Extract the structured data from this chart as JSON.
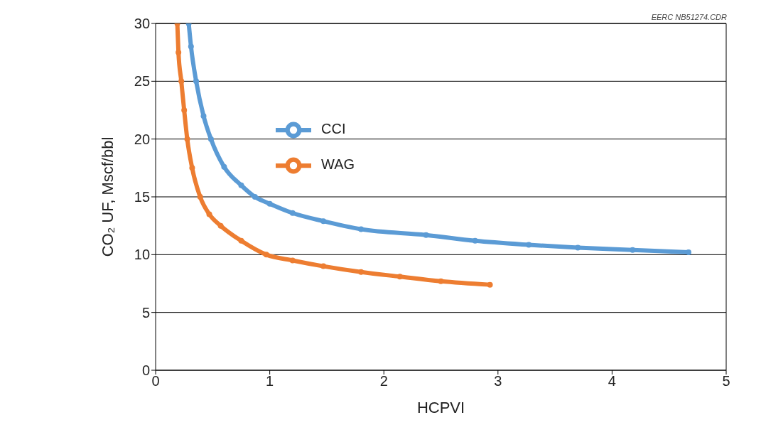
{
  "chart_data": {
    "type": "line",
    "xlabel": "HCPVI",
    "ylabel": "CO₂ UF, Mscf/bbl",
    "annotations": [
      "EERC NB51274.CDR"
    ],
    "series": [
      {
        "name": "CCI",
        "color": "#5b9bd5",
        "x": [
          0.29,
          0.31,
          0.355,
          0.42,
          0.485,
          0.6,
          0.75,
          0.87,
          1,
          1.2,
          1.47,
          1.8,
          2.37,
          2.8,
          3.27,
          3.7,
          4.18,
          4.67
        ],
        "values": [
          30,
          28,
          25,
          22,
          20,
          17.6,
          16,
          15,
          14.4,
          13.6,
          12.9,
          12.2,
          11.7,
          11.2,
          10.85,
          10.6,
          10.4,
          10.2
        ]
      },
      {
        "name": "WAG",
        "color": "#ed7d31",
        "x": [
          0.19,
          0.2,
          0.225,
          0.25,
          0.277,
          0.32,
          0.39,
          0.47,
          0.57,
          0.75,
          0.97,
          1.2,
          1.47,
          1.8,
          2.14,
          2.5,
          2.93
        ],
        "values": [
          30,
          27.5,
          25,
          22.5,
          20,
          17.5,
          15,
          13.5,
          12.5,
          11.2,
          10,
          9.5,
          9,
          8.5,
          8.1,
          7.7,
          7.4
        ]
      }
    ],
    "xlim": [
      0,
      5
    ],
    "xticks": [
      0,
      1,
      2,
      3,
      4,
      5
    ],
    "ylim": [
      0,
      30
    ],
    "yticks": [
      0,
      5,
      10,
      15,
      20,
      25,
      30
    ],
    "grid": "y",
    "legend": "top left",
    "marker": "circle",
    "line_style": "solid"
  }
}
